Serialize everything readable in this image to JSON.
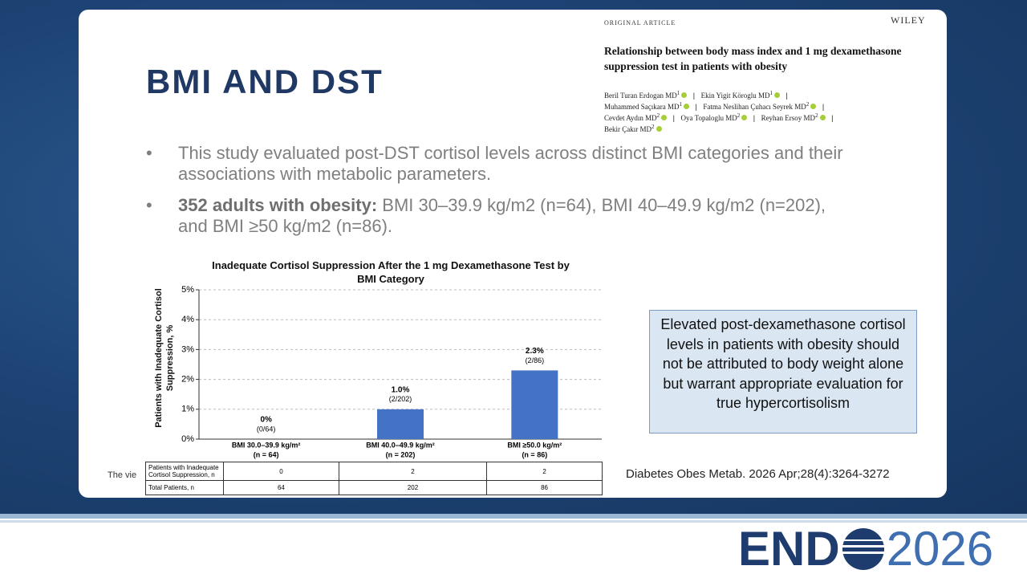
{
  "slide": {
    "title": "BMI AND DST",
    "bullets": [
      {
        "text": "This study evaluated post-DST cortisol levels across distinct BMI categories and their associations with metabolic parameters."
      },
      {
        "bold": "352 adults with obesity:",
        "text": "BMI 30–39.9 kg/m2 (n=64), BMI 40–49.9 kg/m2 (n=202), and BMI ≥50 kg/m2 (n=86)."
      }
    ],
    "callout": "Elevated post-dexamethasone cortisol levels in patients with obesity should not be attributed to body weight alone but warrant appropriate evaluation for true hypercortisolism",
    "citation": "Diabetes Obes Metab. 2026 Apr;28(4):3264-3272",
    "footnote": "The vie"
  },
  "paper": {
    "label": "ORIGINAL ARTICLE",
    "publisher": "WILEY",
    "title": "Relationship between body mass index and 1 mg dexamethasone suppression test in patients with obesity",
    "authors": [
      {
        "name": "Beril Turan Erdogan MD",
        "aff": "1"
      },
      {
        "name": "Ekin Yigit Köroglu MD",
        "aff": "1"
      },
      {
        "name": "Muhammed Saçıkara MD",
        "aff": "1"
      },
      {
        "name": "Fatma Neslihan Çuhacı Seyrek MD",
        "aff": "2"
      },
      {
        "name": "Cevdet Aydın MD",
        "aff": "2"
      },
      {
        "name": "Oya Topaloglu MD",
        "aff": "2"
      },
      {
        "name": "Reyhan Ersoy MD",
        "aff": "2"
      },
      {
        "name": "Bekir Çakır MD",
        "aff": "2"
      }
    ]
  },
  "chart_data": {
    "type": "bar",
    "title": "Inadequate Cortisol Suppression After the 1 mg Dexamethasone Test by BMI Category",
    "y_label": "Patients with Inadequate Cortisol Suppression, %",
    "categories": [
      "BMI 30.0–39.9 kg/m²",
      "BMI 40.0–49.9 kg/m²",
      "BMI ≥50.0 kg/m²"
    ],
    "category_notes": [
      "(n = 64)",
      "(n = 202)",
      "(n = 86)"
    ],
    "values": [
      0,
      1.0,
      2.3
    ],
    "value_labels": [
      "0%",
      "1.0%",
      "2.3%"
    ],
    "value_notes": [
      "(0/64)",
      "(2/202)",
      "(2/86)"
    ],
    "color": "#4472c4",
    "ylim": [
      0,
      5
    ],
    "yticks": [
      {
        "value": 0,
        "label": "0%"
      },
      {
        "value": 1,
        "label": "1%"
      },
      {
        "value": 2,
        "label": "2%"
      },
      {
        "value": 3,
        "label": "3%"
      },
      {
        "value": 4,
        "label": "4%"
      },
      {
        "value": 5,
        "label": "5%"
      }
    ],
    "grid": true
  },
  "table": {
    "rows": [
      [
        "Patients with Inadequate Cortisol Suppression, n",
        "0",
        "2",
        "2"
      ],
      [
        "Total Patients, n",
        "64",
        "202",
        "86"
      ]
    ]
  },
  "logo": {
    "left": "END",
    "right": "2026"
  }
}
